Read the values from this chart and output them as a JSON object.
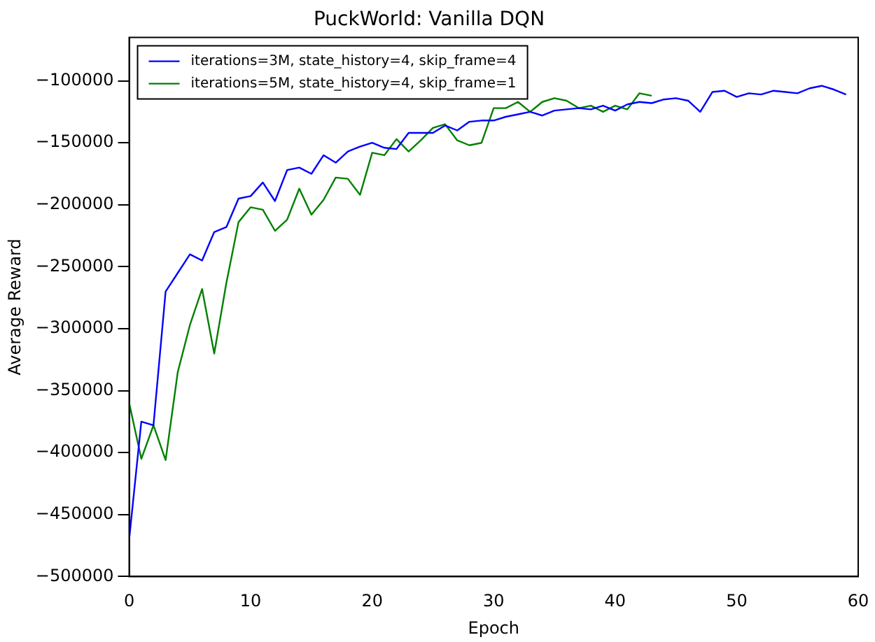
{
  "chart_data": {
    "type": "line",
    "title": "PuckWorld: Vanilla DQN",
    "xlabel": "Epoch",
    "ylabel": "Average Reward",
    "xlim": [
      0,
      60
    ],
    "xticks": [
      0,
      10,
      20,
      30,
      40,
      50,
      60
    ],
    "ylim": [
      -500000,
      -65000
    ],
    "yticks": [
      -500000,
      -450000,
      -400000,
      -350000,
      -300000,
      -250000,
      -200000,
      -150000,
      -100000
    ],
    "grid": false,
    "legend": "top left",
    "marker": "none",
    "line_style": "solid",
    "series": [
      {
        "name": "iterations=3M, state_history=4, skip_frame=4",
        "color": "#0000ff",
        "x": [
          0,
          1,
          2,
          3,
          4,
          5,
          6,
          7,
          8,
          9,
          10,
          11,
          12,
          13,
          14,
          15,
          16,
          17,
          18,
          19,
          20,
          21,
          22,
          23,
          24,
          25,
          26,
          27,
          28,
          29,
          30,
          31,
          32,
          33,
          34,
          35,
          36,
          37,
          38,
          39,
          40,
          41,
          42,
          43,
          44,
          45,
          46,
          47,
          48,
          49,
          50,
          51,
          52,
          53,
          54,
          55,
          56,
          57,
          58,
          59
        ],
        "values": [
          -470000,
          -375000,
          -378000,
          -270000,
          -255000,
          -240000,
          -245000,
          -222000,
          -218000,
          -195000,
          -193000,
          -182000,
          -197000,
          -172000,
          -170000,
          -175000,
          -160000,
          -166000,
          -157000,
          -153000,
          -150000,
          -154000,
          -155000,
          -142000,
          -142000,
          -142000,
          -136000,
          -140000,
          -133000,
          -132000,
          -132000,
          -129000,
          -127000,
          -125000,
          -128000,
          -124000,
          -123000,
          -122000,
          -123000,
          -120000,
          -124000,
          -119000,
          -117000,
          -118000,
          -115000,
          -114000,
          -116000,
          -125000,
          -109000,
          -108000,
          -113000,
          -110000,
          -111000,
          -108000,
          -109000,
          -110000,
          -106000,
          -104000,
          -107000,
          -111000
        ]
      },
      {
        "name": "iterations=5M, state_history=4, skip_frame=1",
        "color": "#008000",
        "x": [
          0,
          1,
          2,
          3,
          4,
          5,
          6,
          7,
          8,
          9,
          10,
          11,
          12,
          13,
          14,
          15,
          16,
          17,
          18,
          19,
          20,
          21,
          22,
          23,
          24,
          25,
          26,
          27,
          28,
          29,
          30,
          31,
          32,
          33,
          34,
          35,
          36,
          37,
          38,
          39,
          40,
          41,
          42,
          43
        ],
        "values": [
          -360000,
          -405000,
          -378000,
          -406000,
          -335000,
          -297000,
          -268000,
          -320000,
          -263000,
          -214000,
          -202000,
          -204000,
          -221000,
          -212000,
          -187000,
          -208000,
          -196000,
          -178000,
          -179000,
          -192000,
          -158000,
          -160000,
          -147000,
          -157000,
          -148000,
          -138000,
          -135000,
          -148000,
          -152000,
          -150000,
          -122000,
          -122000,
          -117000,
          -125000,
          -117000,
          -114000,
          -116000,
          -122000,
          -120000,
          -125000,
          -120000,
          -123000,
          -110000,
          -112000
        ]
      }
    ]
  }
}
